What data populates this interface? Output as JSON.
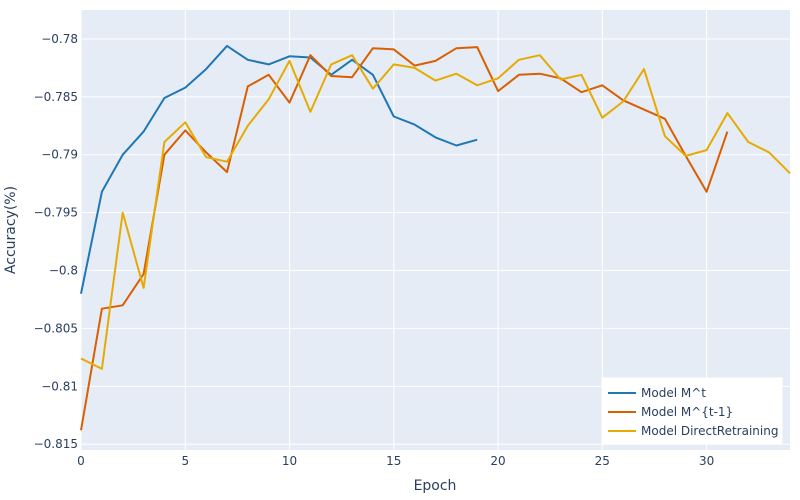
{
  "chart_data": {
    "type": "line",
    "title": "",
    "xlabel": "Epoch",
    "ylabel": "Accuracy(%)",
    "xlim": [
      0,
      34
    ],
    "ylim": [
      -0.8155,
      -0.7775
    ],
    "x_ticks": [
      0,
      5,
      10,
      15,
      20,
      25,
      30
    ],
    "y_ticks": [
      -0.78,
      -0.785,
      -0.79,
      -0.795,
      -0.8,
      -0.805,
      -0.81,
      -0.815
    ],
    "y_tick_labels": [
      "−0.78",
      "−0.785",
      "−0.79",
      "−0.795",
      "−0.8",
      "−0.805",
      "−0.81",
      "−0.815"
    ],
    "grid": true,
    "legend_position": "bottom-right",
    "series": [
      {
        "name": "Model M^t",
        "color": "#1f77b4",
        "x": [
          0,
          1,
          2,
          3,
          4,
          5,
          6,
          7,
          8,
          9,
          10,
          11,
          12,
          13,
          14,
          15,
          16,
          17,
          18,
          19
        ],
        "values": [
          -0.802,
          -0.7932,
          -0.79,
          -0.788,
          -0.7851,
          -0.7842,
          -0.7826,
          -0.7806,
          -0.7818,
          -0.7822,
          -0.7815,
          -0.7816,
          -0.7831,
          -0.7818,
          -0.7831,
          -0.7867,
          -0.7874,
          -0.7885,
          -0.7892,
          -0.7887
        ]
      },
      {
        "name": "Model M^{t-1}",
        "color": "#d95f02",
        "x": [
          0,
          1,
          2,
          3,
          4,
          5,
          6,
          7,
          8,
          9,
          10,
          11,
          12,
          13,
          14,
          15,
          16,
          17,
          18,
          19,
          20,
          21,
          22,
          23,
          24,
          25,
          26,
          27,
          28,
          29,
          30,
          31
        ],
        "values": [
          -0.8138,
          -0.8033,
          -0.803,
          -0.8003,
          -0.79,
          -0.7879,
          -0.7898,
          -0.7915,
          -0.7841,
          -0.7831,
          -0.7855,
          -0.7814,
          -0.7832,
          -0.7833,
          -0.7808,
          -0.7809,
          -0.7823,
          -0.7819,
          -0.7808,
          -0.7807,
          -0.7845,
          -0.7831,
          -0.783,
          -0.7834,
          -0.7846,
          -0.784,
          -0.7853,
          -0.7861,
          -0.7869,
          -0.7901,
          -0.7932,
          -0.788
        ]
      },
      {
        "name": "Model DirectRetraining",
        "color": "#e6ab02",
        "x": [
          0,
          1,
          2,
          3,
          4,
          5,
          6,
          7,
          8,
          9,
          10,
          11,
          12,
          13,
          14,
          15,
          16,
          17,
          18,
          19,
          20,
          21,
          22,
          23,
          24,
          25,
          26,
          27,
          28,
          29,
          30,
          31,
          32,
          33,
          34
        ],
        "values": [
          -0.8076,
          -0.8085,
          -0.795,
          -0.8015,
          -0.7889,
          -0.7872,
          -0.7902,
          -0.7906,
          -0.7875,
          -0.7852,
          -0.7819,
          -0.7863,
          -0.7822,
          -0.7814,
          -0.7843,
          -0.7822,
          -0.7825,
          -0.7836,
          -0.783,
          -0.784,
          -0.7834,
          -0.7818,
          -0.7814,
          -0.7835,
          -0.7831,
          -0.7868,
          -0.7854,
          -0.7826,
          -0.7884,
          -0.7901,
          -0.7896,
          -0.7864,
          -0.7889,
          -0.7898,
          -0.7916
        ]
      }
    ]
  }
}
